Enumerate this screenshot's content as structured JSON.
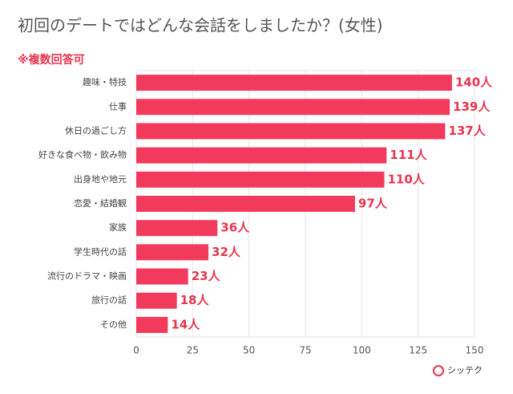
{
  "chart_data": {
    "type": "bar",
    "orientation": "horizontal",
    "title": "初回のデートではどんな会話をしましたか？(女性)",
    "subtitle": "※複数回答可",
    "categories": [
      "趣味・特技",
      "仕事",
      "休日の過ごし方",
      "好きな食べ物・飲み物",
      "出身地や地元",
      "恋愛・結婚観",
      "家族",
      "学生時代の話",
      "流行のドラマ・映画",
      "旅行の話",
      "その他"
    ],
    "values": [
      140,
      139,
      137,
      111,
      110,
      97,
      36,
      32,
      23,
      18,
      14
    ],
    "value_labels": [
      "140人",
      "139人",
      "137人",
      "111人",
      "110人",
      "97人",
      "36人",
      "32人",
      "23人",
      "18人",
      "14人"
    ],
    "color": "#f23b5c",
    "xlim": [
      0,
      150
    ],
    "xticks": [
      0,
      25,
      50,
      75,
      100,
      125,
      150
    ],
    "grid": true,
    "brand": "シッテク"
  }
}
